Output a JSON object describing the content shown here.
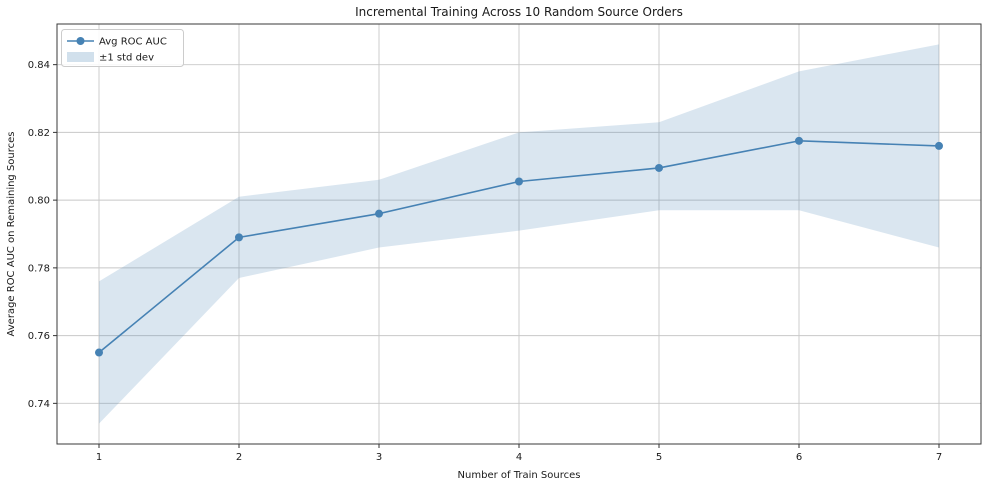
{
  "page": {
    "background": "#ffffff"
  },
  "chart_data": {
    "type": "line",
    "title": "Incremental Training Across 10 Random Source Orders",
    "xlabel": "Number of Train Sources",
    "ylabel": "Average ROC AUC on Remaining Sources",
    "x": [
      1,
      2,
      3,
      4,
      5,
      6,
      7
    ],
    "series": [
      {
        "name": "Avg ROC AUC",
        "values": [
          0.755,
          0.789,
          0.796,
          0.8055,
          0.8095,
          0.8175,
          0.816
        ],
        "color": "#4682b4",
        "marker": "circle",
        "line_width": 1.6,
        "marker_radius": 4
      }
    ],
    "band": {
      "name": "±1 std dev",
      "upper": [
        0.776,
        0.801,
        0.806,
        0.82,
        0.823,
        0.838,
        0.846
      ],
      "lower": [
        0.734,
        0.777,
        0.786,
        0.791,
        0.797,
        0.797,
        0.786
      ],
      "color": "#4682b4",
      "opacity": 0.2
    },
    "xlim": [
      0.7,
      7.3
    ],
    "ylim": [
      0.728,
      0.852
    ],
    "xticks": [
      1,
      2,
      3,
      4,
      5,
      6,
      7
    ],
    "xtick_labels": [
      "1",
      "2",
      "3",
      "4",
      "5",
      "6",
      "7"
    ],
    "yticks": [
      0.74,
      0.76,
      0.78,
      0.8,
      0.82,
      0.84
    ],
    "ytick_labels": [
      "0.74",
      "0.76",
      "0.78",
      "0.80",
      "0.82",
      "0.84"
    ],
    "grid": true,
    "grid_color": "#c8c8c8",
    "frame_color": "#3a3a3a",
    "tick_color": "#333333",
    "text_color": "#1a1a1a",
    "legend": {
      "position": "upper-left",
      "background": "#ffffff",
      "border_color": "#cccccc"
    }
  }
}
